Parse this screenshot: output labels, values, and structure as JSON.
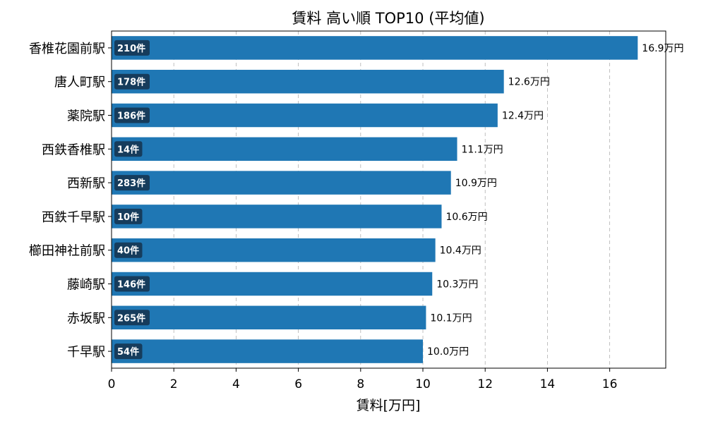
{
  "chart_data": {
    "type": "bar",
    "orientation": "horizontal",
    "title": "賃料 高い順 TOP10 (平均値)",
    "xlabel": "賃料[万円]",
    "ylabel": "",
    "xlim": [
      0,
      17.8
    ],
    "xticks": [
      0,
      2,
      4,
      6,
      8,
      10,
      12,
      14,
      16
    ],
    "grid": "x-dashed",
    "bar_color": "#1f77b4",
    "badge_color": "#163c5c",
    "categories": [
      "香椎花園前駅",
      "唐人町駅",
      "薬院駅",
      "西鉄香椎駅",
      "西新駅",
      "西鉄千早駅",
      "櫛田神社前駅",
      "藤崎駅",
      "赤坂駅",
      "千早駅"
    ],
    "values": [
      16.9,
      12.6,
      12.4,
      11.1,
      10.9,
      10.6,
      10.4,
      10.3,
      10.1,
      10.0
    ],
    "value_labels": [
      "16.9万円",
      "12.6万円",
      "12.4万円",
      "11.1万円",
      "10.9万円",
      "10.6万円",
      "10.4万円",
      "10.3万円",
      "10.1万円",
      "10.0万円"
    ],
    "counts": [
      "210件",
      "178件",
      "186件",
      "14件",
      "283件",
      "10件",
      "40件",
      "146件",
      "265件",
      "54件"
    ]
  }
}
